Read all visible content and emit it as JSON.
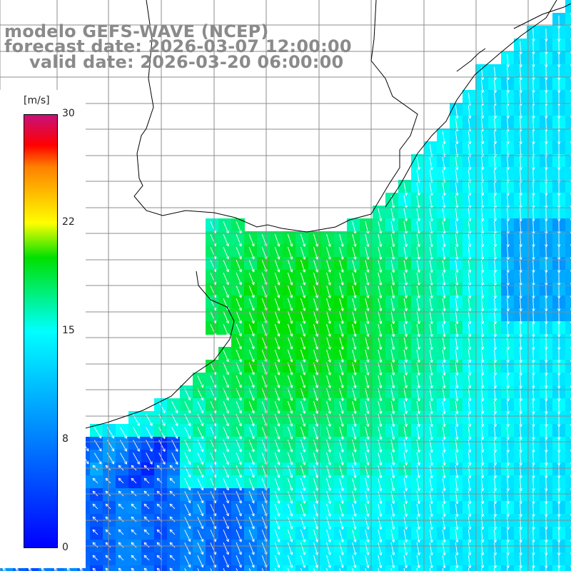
{
  "title": {
    "line1": "modelo GEFS-WAVE (NCEP)",
    "line2": "forecast date: 2026-03-07 12:00:00",
    "line3": "valid date: 2026-03-20 06:00:00"
  },
  "colorbar": {
    "unit": "[m/s]",
    "ticks": [
      "30",
      "22",
      "15",
      "8",
      "0"
    ],
    "colors": [
      "#0000ff",
      "#00ffff",
      "#00e000",
      "#ffff00",
      "#ff8000",
      "#ff0000",
      "#c8107a"
    ]
  },
  "map": {
    "land_color": "#ffffff",
    "grid_color": "#909090",
    "coastline_color": "#000000",
    "arrow_color": "#ffffff"
  }
}
